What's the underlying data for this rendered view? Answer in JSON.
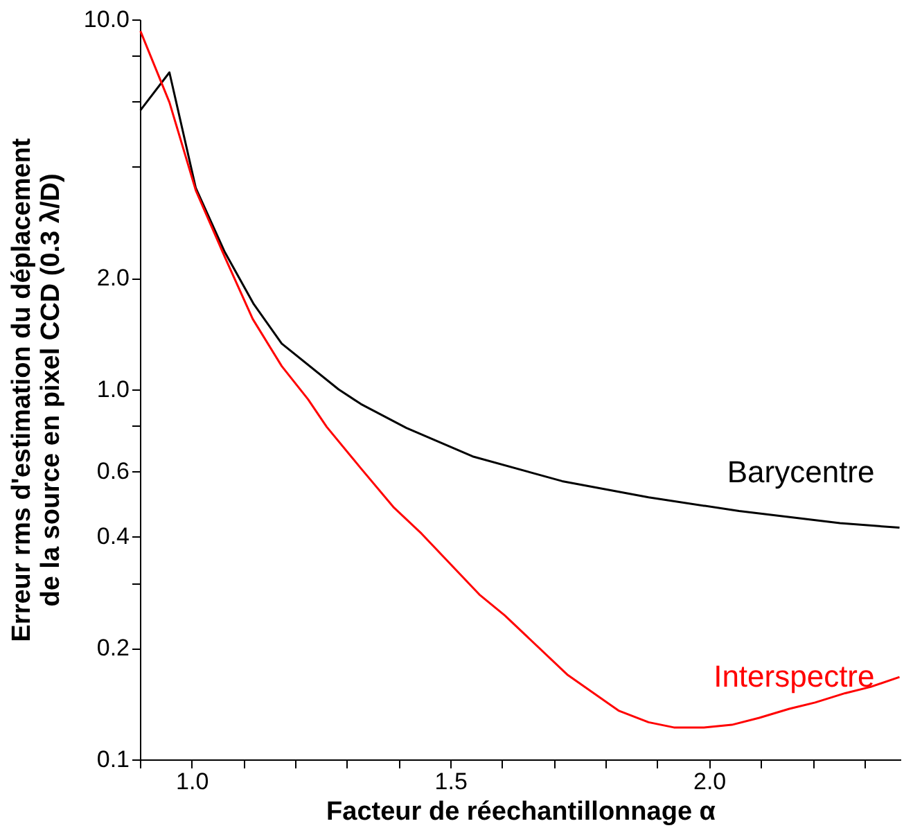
{
  "chart_data": {
    "type": "line",
    "xlabel": "Facteur de réechantillonnage  α",
    "ylabel": "Erreur rms d'estimation du déplacement\nde la source en pixel CCD (0.3 λ/D)",
    "log": "y",
    "grid": false,
    "marker": "none",
    "line_style": "solid",
    "xlim": [
      0.9,
      2.37
    ],
    "xticks": [
      {
        "value": 0.9,
        "label": null
      },
      {
        "value": 1.0,
        "label": "1.0"
      },
      {
        "value": 1.1,
        "label": null
      },
      {
        "value": 1.2,
        "label": null
      },
      {
        "value": 1.3,
        "label": null
      },
      {
        "value": 1.4,
        "label": null
      },
      {
        "value": 1.5,
        "label": "1.5"
      },
      {
        "value": 1.6,
        "label": null
      },
      {
        "value": 1.7,
        "label": null
      },
      {
        "value": 1.8,
        "label": null
      },
      {
        "value": 1.9,
        "label": null
      },
      {
        "value": 2.0,
        "label": "2.0"
      },
      {
        "value": 2.1,
        "label": null
      },
      {
        "value": 2.2,
        "label": null
      },
      {
        "value": 2.3,
        "label": null
      }
    ],
    "ylim": [
      0.1,
      10
    ],
    "yticks": [
      {
        "value": 0.1,
        "label": "0.1"
      },
      {
        "value": 0.2,
        "label": "0.2"
      },
      {
        "value": 0.3,
        "label": null
      },
      {
        "value": 0.4,
        "label": "0.4"
      },
      {
        "value": 0.6,
        "label": "0.6"
      },
      {
        "value": 0.8,
        "label": null
      },
      {
        "value": 1,
        "label": "1.0"
      },
      {
        "value": 2,
        "label": "2.0"
      },
      {
        "value": 4,
        "label": null
      },
      {
        "value": 6,
        "label": null
      },
      {
        "value": 8,
        "label": null
      },
      {
        "value": 10,
        "label": "10.0"
      }
    ],
    "series": [
      {
        "name": "Barycentre",
        "color": "#000000",
        "x": [
          0.901,
          0.957,
          1.008,
          1.064,
          1.12,
          1.174,
          1.284,
          1.327,
          1.415,
          1.543,
          1.716,
          1.883,
          2.058,
          2.253,
          2.368
        ],
        "values": [
          5.68,
          7.19,
          3.5,
          2.35,
          1.7,
          1.33,
          1.0,
          0.913,
          0.787,
          0.659,
          0.565,
          0.511,
          0.469,
          0.435,
          0.423
        ]
      },
      {
        "name": "Interspectre",
        "color": "#ff0000",
        "x": [
          0.901,
          0.957,
          1.008,
          1.064,
          1.118,
          1.174,
          1.225,
          1.261,
          1.327,
          1.391,
          1.444,
          1.556,
          1.605,
          1.727,
          1.825,
          1.883,
          1.932,
          1.99,
          2.044,
          2.097,
          2.155,
          2.205,
          2.263,
          2.312,
          2.368
        ],
        "values": [
          9.3,
          5.97,
          3.45,
          2.28,
          1.55,
          1.156,
          0.94,
          0.792,
          0.612,
          0.479,
          0.408,
          0.279,
          0.245,
          0.169,
          0.1355,
          0.126,
          0.122,
          0.122,
          0.124,
          0.1295,
          0.137,
          0.1425,
          0.151,
          0.157,
          0.167
        ]
      }
    ]
  }
}
